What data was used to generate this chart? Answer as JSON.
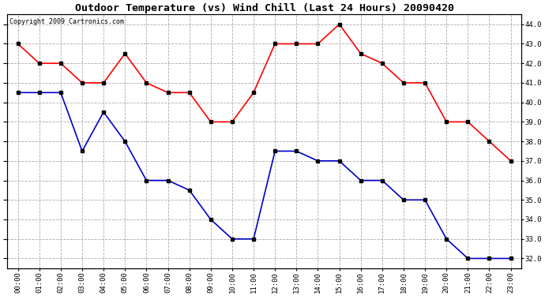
{
  "title": "Outdoor Temperature (vs) Wind Chill (Last 24 Hours) 20090420",
  "copyright": "Copyright 2009 Cartronics.com",
  "hours": [
    "00:00",
    "01:00",
    "02:00",
    "03:00",
    "04:00",
    "05:00",
    "06:00",
    "07:00",
    "08:00",
    "09:00",
    "10:00",
    "11:00",
    "12:00",
    "13:00",
    "14:00",
    "15:00",
    "16:00",
    "17:00",
    "18:00",
    "19:00",
    "20:00",
    "21:00",
    "22:00",
    "23:00"
  ],
  "temp": [
    43.0,
    42.0,
    42.0,
    41.0,
    41.0,
    42.5,
    41.0,
    40.5,
    40.5,
    39.0,
    39.0,
    40.5,
    43.0,
    43.0,
    43.0,
    44.0,
    42.5,
    42.0,
    41.0,
    41.0,
    39.0,
    39.0,
    38.0,
    37.0
  ],
  "wind_chill": [
    40.5,
    40.5,
    40.5,
    37.5,
    39.5,
    38.0,
    36.0,
    36.0,
    35.5,
    34.0,
    33.0,
    33.0,
    37.5,
    37.5,
    37.0,
    37.0,
    36.0,
    36.0,
    35.0,
    35.0,
    33.0,
    32.0,
    32.0,
    32.0
  ],
  "temp_color": "#ff0000",
  "wind_chill_color": "#0000cc",
  "bg_color": "#ffffff",
  "plot_bg_color": "#ffffff",
  "grid_color": "#aaaaaa",
  "ylim": [
    31.5,
    44.5
  ],
  "yticks": [
    32.0,
    33.0,
    34.0,
    35.0,
    36.0,
    37.0,
    38.0,
    39.0,
    40.0,
    41.0,
    42.0,
    43.0,
    44.0
  ],
  "title_fontsize": 9.5,
  "copyright_fontsize": 6.0,
  "tick_fontsize": 6.5,
  "marker": "s",
  "marker_size": 3,
  "linewidth": 1.2
}
